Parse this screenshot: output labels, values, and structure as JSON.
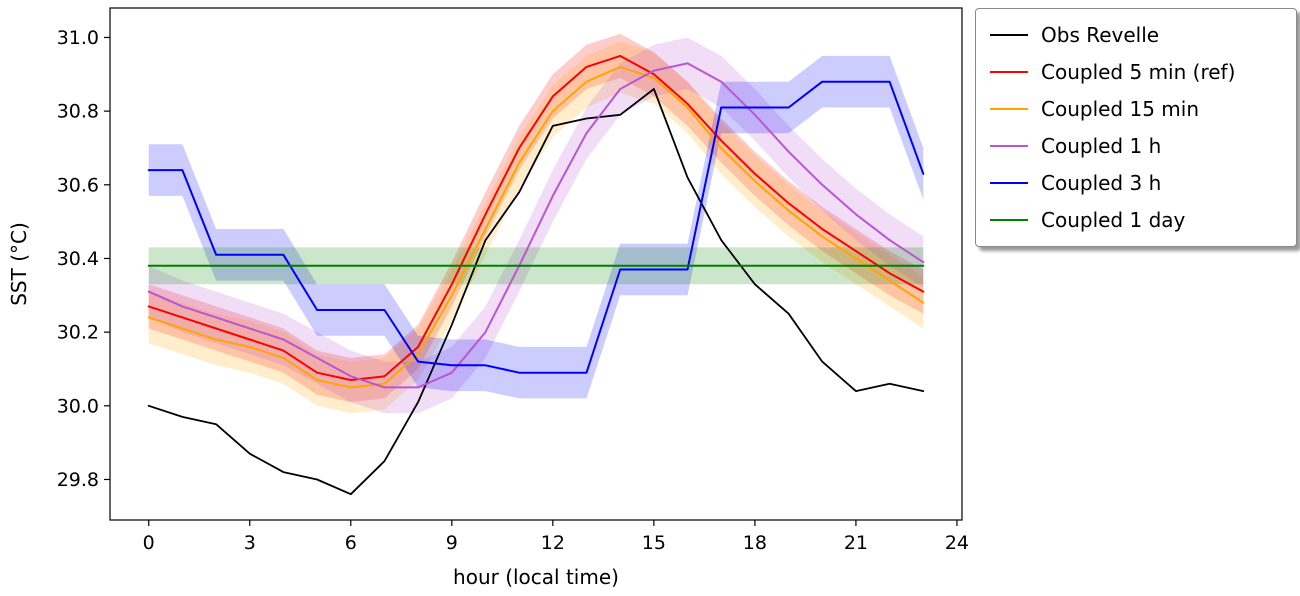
{
  "chart_data": {
    "type": "line",
    "title": "",
    "xlabel": "hour (local time)",
    "ylabel": "SST (°C)",
    "xlim": [
      -1.15,
      24.15
    ],
    "ylim": [
      29.69,
      31.08
    ],
    "grid": false,
    "legend_position": "upper right outside",
    "xticks": [
      0,
      3,
      6,
      9,
      12,
      15,
      18,
      21,
      24
    ],
    "xtick_labels": [
      "0",
      "3",
      "6",
      "9",
      "12",
      "15",
      "18",
      "21",
      "24"
    ],
    "yticks": [
      29.8,
      30.0,
      30.2,
      30.4,
      30.6,
      30.8,
      31.0
    ],
    "ytick_labels": [
      "29.8",
      "30.0",
      "30.2",
      "30.4",
      "30.6",
      "30.8",
      "31.0"
    ],
    "x": [
      0,
      1,
      2,
      3,
      4,
      5,
      6,
      7,
      8,
      9,
      10,
      11,
      12,
      13,
      14,
      15,
      16,
      17,
      18,
      19,
      20,
      21,
      22,
      23
    ],
    "series": [
      {
        "name": "Obs Revelle",
        "color": "#000000",
        "band": 0,
        "values": [
          30.0,
          29.97,
          29.95,
          29.87,
          29.82,
          29.8,
          29.76,
          29.85,
          30.01,
          30.22,
          30.45,
          30.58,
          30.76,
          30.78,
          30.79,
          30.86,
          30.62,
          30.45,
          30.33,
          30.25,
          30.12,
          30.04,
          30.06,
          30.04
        ]
      },
      {
        "name": "Coupled 5 min (ref)",
        "color": "#ff0000",
        "band": 0.06,
        "values": [
          30.27,
          30.24,
          30.21,
          30.18,
          30.15,
          30.09,
          30.07,
          30.08,
          30.16,
          30.33,
          30.52,
          30.7,
          30.84,
          30.92,
          30.95,
          30.9,
          30.82,
          30.72,
          30.63,
          30.55,
          30.48,
          30.42,
          30.36,
          30.31
        ]
      },
      {
        "name": "Coupled 15 min",
        "color": "#ffa500",
        "band": 0.07,
        "values": [
          30.24,
          30.21,
          30.18,
          30.16,
          30.13,
          30.07,
          30.05,
          30.06,
          30.14,
          30.3,
          30.48,
          30.66,
          30.8,
          30.88,
          30.92,
          30.89,
          30.81,
          30.7,
          30.61,
          30.53,
          30.46,
          30.4,
          30.34,
          30.28
        ]
      },
      {
        "name": "Coupled 1 h",
        "color": "#ba55d3",
        "band": 0.07,
        "values": [
          30.31,
          30.27,
          30.24,
          30.21,
          30.18,
          30.13,
          30.08,
          30.05,
          30.05,
          30.09,
          30.2,
          30.38,
          30.57,
          30.74,
          30.86,
          30.91,
          30.93,
          30.88,
          30.79,
          30.69,
          30.6,
          30.52,
          30.45,
          30.39
        ]
      },
      {
        "name": "Coupled 3 h",
        "color": "#0000ff",
        "band": 0.07,
        "values": [
          30.64,
          30.64,
          30.41,
          30.41,
          30.41,
          30.26,
          30.26,
          30.26,
          30.12,
          30.11,
          30.11,
          30.09,
          30.09,
          30.09,
          30.37,
          30.37,
          30.37,
          30.81,
          30.81,
          30.81,
          30.88,
          30.88,
          30.88,
          30.63
        ]
      },
      {
        "name": "Coupled 1 day",
        "color": "#008000",
        "band": 0.05,
        "values": [
          30.38,
          30.38,
          30.38,
          30.38,
          30.38,
          30.38,
          30.38,
          30.38,
          30.38,
          30.38,
          30.38,
          30.38,
          30.38,
          30.38,
          30.38,
          30.38,
          30.38,
          30.38,
          30.38,
          30.38,
          30.38,
          30.38,
          30.38,
          30.38
        ]
      }
    ]
  }
}
